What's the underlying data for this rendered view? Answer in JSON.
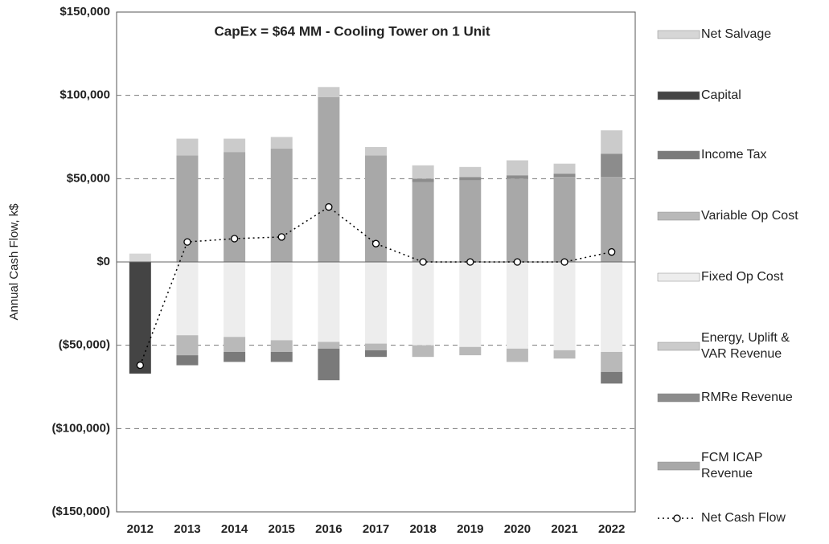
{
  "chart_data": {
    "type": "bar",
    "stacked": true,
    "title": "CapEx = $64 MM - Cooling Tower on 1 Unit",
    "y_label": "Annual Cash Flow, k$",
    "categories": [
      "2012",
      "2013",
      "2014",
      "2015",
      "2016",
      "2017",
      "2018",
      "2019",
      "2020",
      "2021",
      "2022"
    ],
    "series": [
      {
        "name": "Net Salvage",
        "color": "#d6d6d6",
        "values": [
          5000,
          0,
          0,
          0,
          0,
          0,
          0,
          0,
          0,
          0,
          0
        ]
      },
      {
        "name": "Capital",
        "color": "#444444",
        "values": [
          -67000,
          0,
          0,
          0,
          0,
          0,
          0,
          0,
          0,
          0,
          0
        ]
      },
      {
        "name": "Income Tax",
        "color": "#7a7a7a",
        "values": [
          0,
          -6000,
          -6000,
          -6000,
          -19000,
          -4000,
          0,
          0,
          0,
          0,
          -7000
        ]
      },
      {
        "name": "Variable Op Cost",
        "color": "#b9b9b9",
        "values": [
          0,
          -12000,
          -9000,
          -7000,
          -4000,
          -4000,
          -7000,
          -5000,
          -8000,
          -5000,
          -12000
        ]
      },
      {
        "name": "Fixed Op Cost",
        "color": "#ededed",
        "values": [
          0,
          -44000,
          -45000,
          -47000,
          -48000,
          -49000,
          -50000,
          -51000,
          -52000,
          -53000,
          -54000
        ]
      },
      {
        "name": "Energy, Uplift & VAR Revenue",
        "color": "#cbcbcb",
        "values": [
          0,
          10000,
          8000,
          7000,
          6000,
          5000,
          8000,
          6000,
          9000,
          6000,
          14000
        ]
      },
      {
        "name": "RMRe Revenue",
        "color": "#8c8c8c",
        "values": [
          0,
          0,
          0,
          0,
          0,
          0,
          2000,
          2000,
          2000,
          2000,
          14000
        ]
      },
      {
        "name": "FCM ICAP Revenue",
        "color": "#a8a8a8",
        "values": [
          0,
          64000,
          66000,
          68000,
          99000,
          64000,
          48000,
          49000,
          50000,
          51000,
          51000
        ]
      },
      {
        "name": "Net Cash Flow",
        "type": "line",
        "color": "#000000",
        "values": [
          -62000,
          12000,
          14000,
          15000,
          33000,
          11000,
          0,
          0,
          0,
          0,
          6000
        ]
      }
    ],
    "ylim": [
      -150000,
      150000
    ],
    "yticks": [
      {
        "value": -150000,
        "label": "($150,000)"
      },
      {
        "value": -100000,
        "label": "($100,000)"
      },
      {
        "value": -50000,
        "label": "($50,000)"
      },
      {
        "value": 0,
        "label": "$0"
      },
      {
        "value": 50000,
        "label": "$50,000"
      },
      {
        "value": 100000,
        "label": "$100,000"
      },
      {
        "value": 150000,
        "label": "$150,000"
      }
    ],
    "grid": true,
    "legend": "right"
  }
}
